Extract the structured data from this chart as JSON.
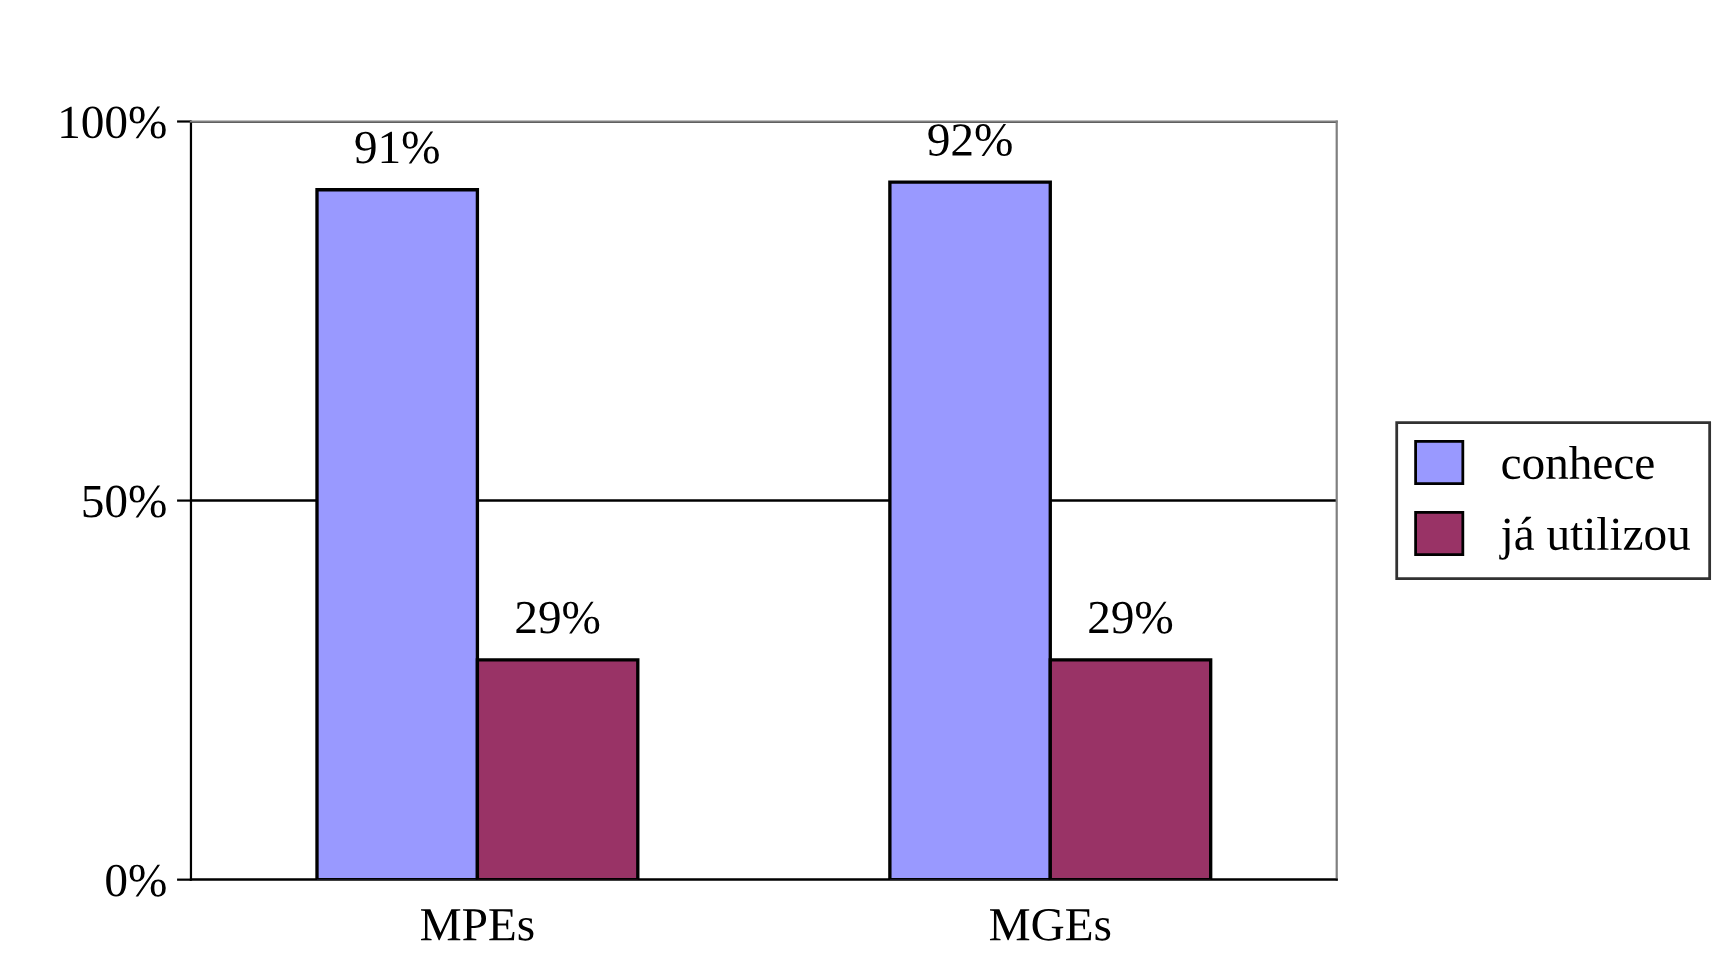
{
  "chart_data": {
    "type": "bar",
    "categories": [
      "MPEs",
      "MGEs"
    ],
    "series": [
      {
        "name": "conhece",
        "color": "#9999ff",
        "values": [
          91,
          92
        ],
        "value_labels": [
          "91%",
          "92%"
        ]
      },
      {
        "name": "já utilizou",
        "color": "#993366",
        "values": [
          29,
          29
        ],
        "value_labels": [
          "29%",
          "29%"
        ]
      }
    ],
    "ylim": [
      0,
      100
    ],
    "yticks": [
      {
        "value": 0,
        "label": "0%"
      },
      {
        "value": 50,
        "label": "50%"
      },
      {
        "value": 100,
        "label": "100%"
      }
    ],
    "grid": "y",
    "legend": "right"
  }
}
